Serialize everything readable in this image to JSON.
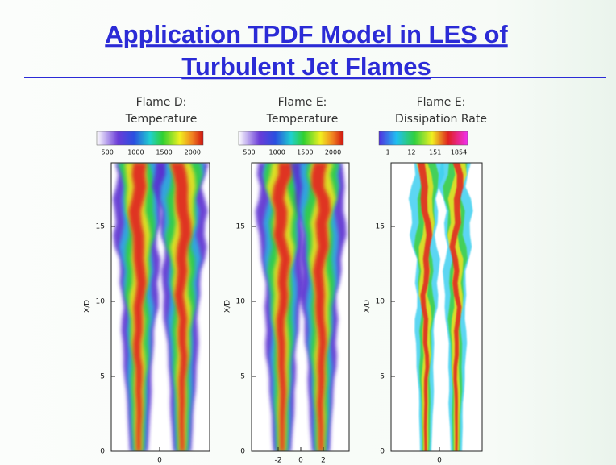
{
  "title": {
    "line1": "Application TPDF Model in LES of",
    "line2": "Turbulent Jet Flames"
  },
  "panels": [
    {
      "title": [
        "Flame D:",
        "Temperature"
      ],
      "colorbar_labels": [
        "500",
        "1000",
        "1500",
        "2000"
      ],
      "y_label": "X/D",
      "y_ticks": [
        "0",
        "5",
        "10",
        "15"
      ],
      "x_ticks": [
        "0"
      ]
    },
    {
      "title": [
        "Flame E:",
        "Temperature"
      ],
      "colorbar_labels": [
        "500",
        "1000",
        "1500",
        "2000"
      ],
      "y_label": "X/D",
      "y_ticks": [
        "0",
        "5",
        "10",
        "15"
      ],
      "x_ticks": [
        "-2",
        "0",
        "2"
      ]
    },
    {
      "title": [
        "Flame E:",
        "Dissipation Rate"
      ],
      "colorbar_labels": [
        "1",
        "12",
        "151",
        "1854"
      ],
      "y_label": "X/D",
      "y_ticks": [
        "0",
        "5",
        "10",
        "15"
      ],
      "x_ticks": [
        "0"
      ]
    }
  ]
}
